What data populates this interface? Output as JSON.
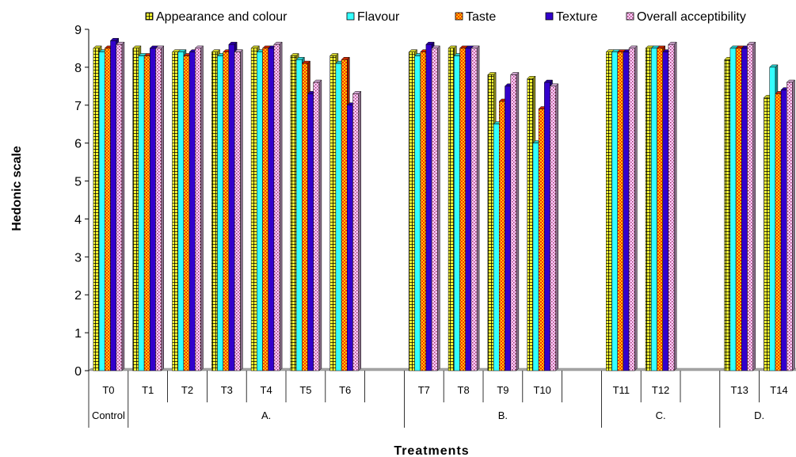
{
  "chart_data": {
    "type": "bar",
    "title": "",
    "xlabel": "Treatments",
    "ylabel": "Hedonic scale",
    "ylim": [
      0,
      9
    ],
    "yticks": [
      0,
      1,
      2,
      3,
      4,
      5,
      6,
      7,
      8,
      9
    ],
    "grid": false,
    "legend_position": "top",
    "categories": [
      "T0",
      "T1",
      "T2",
      "T3",
      "T4",
      "T5",
      "T6",
      "",
      "T7",
      "T8",
      "T9",
      "T10",
      "",
      "T11",
      "T12",
      "",
      "T13",
      "T14"
    ],
    "groups": [
      {
        "label": "Control",
        "start": 0,
        "end": 0
      },
      {
        "label": "A.",
        "start": 1,
        "end": 7
      },
      {
        "label": "B.",
        "start": 8,
        "end": 12
      },
      {
        "label": "C.",
        "start": 13,
        "end": 15
      },
      {
        "label": "D.",
        "start": 16,
        "end": 17
      }
    ],
    "series": [
      {
        "name": "Appearance and colour",
        "color": "#ffff33",
        "pattern": "grid",
        "values": [
          8.5,
          8.5,
          8.4,
          8.4,
          8.5,
          8.3,
          8.3,
          0,
          8.4,
          8.5,
          7.8,
          7.7,
          0,
          8.4,
          8.5,
          0,
          8.2,
          7.2
        ]
      },
      {
        "name": "Flavour",
        "color": "#33ffff",
        "pattern": "solid",
        "values": [
          8.4,
          8.3,
          8.4,
          8.3,
          8.4,
          8.2,
          8.1,
          0,
          8.3,
          8.3,
          6.5,
          6.0,
          0,
          8.4,
          8.5,
          0,
          8.5,
          8.0
        ]
      },
      {
        "name": "Taste",
        "color": "#ff3300",
        "pattern": "checker",
        "values": [
          8.5,
          8.3,
          8.3,
          8.4,
          8.5,
          8.1,
          8.2,
          0,
          8.4,
          8.5,
          7.1,
          6.9,
          0,
          8.4,
          8.5,
          0,
          8.5,
          7.3
        ]
      },
      {
        "name": "Texture",
        "color": "#3300cc",
        "pattern": "solid",
        "values": [
          8.7,
          8.5,
          8.4,
          8.6,
          8.5,
          7.3,
          7.0,
          0,
          8.6,
          8.5,
          7.5,
          7.6,
          0,
          8.4,
          8.4,
          0,
          8.5,
          7.4
        ]
      },
      {
        "name": "Overall acceptibility",
        "color": "#ffccff",
        "pattern": "dots",
        "values": [
          8.6,
          8.5,
          8.5,
          8.4,
          8.6,
          7.6,
          7.3,
          0,
          8.5,
          8.5,
          7.8,
          7.5,
          0,
          8.5,
          8.6,
          0,
          8.6,
          7.6
        ]
      }
    ]
  }
}
